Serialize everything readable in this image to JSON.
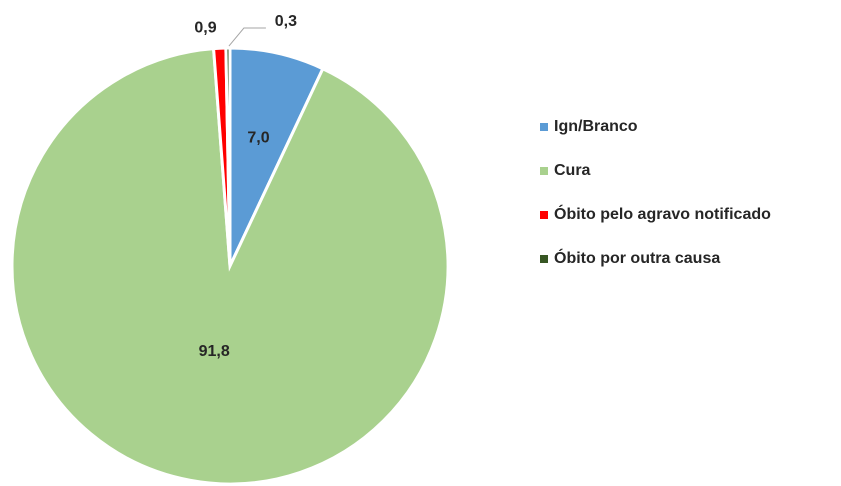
{
  "chart_data": {
    "type": "pie",
    "categories": [
      "Ign/Branco",
      "Cura",
      "Óbito pelo agravo notificado",
      "Óbito por outra causa"
    ],
    "values": [
      7.0,
      91.8,
      0.9,
      0.3
    ],
    "value_labels": [
      "7,0",
      "91,8",
      "0,9",
      "0,3"
    ],
    "colors": [
      "#5b9bd5",
      "#a9d18e",
      "#ff0000",
      "#375623"
    ],
    "legend": "right"
  }
}
